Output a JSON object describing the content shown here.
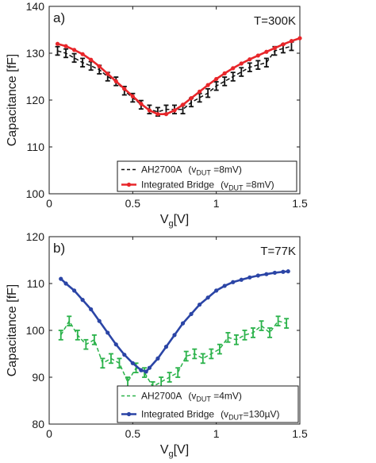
{
  "chart_data": [
    {
      "type": "line",
      "panel_label": "a)",
      "annotation": "T=300K",
      "xlabel_main": "V",
      "xlabel_sub": "g",
      "xlabel_unit": "[V]",
      "ylabel": "Capacitance [fF]",
      "xlim": [
        0,
        1.5
      ],
      "ylim": [
        100,
        140
      ],
      "xticks": [
        0,
        0.5,
        1,
        1.5
      ],
      "xtick_labels": [
        "0",
        "0.5",
        "1",
        "1.5"
      ],
      "yticks": [
        100,
        110,
        120,
        130,
        140
      ],
      "ytick_labels": [
        "100",
        "110",
        "120",
        "130",
        "140"
      ],
      "legend_position": "bottom-right",
      "legend": [
        {
          "main": "AH2700A",
          "pre": "(v",
          "sub": "DUT",
          "post": " =8mV)",
          "color": "#111111",
          "style": "dashed-errorbar"
        },
        {
          "main": "Integrated Bridge",
          "pre": "(v",
          "sub": "DUT",
          "post": " =8mV)",
          "color": "#e8262a",
          "style": "solid-dots"
        }
      ],
      "series": [
        {
          "color": "#111111",
          "style": "dashed-errorbar",
          "error": 0.9,
          "x": [
            0.05,
            0.1,
            0.15,
            0.2,
            0.25,
            0.3,
            0.35,
            0.4,
            0.45,
            0.5,
            0.55,
            0.6,
            0.65,
            0.7,
            0.75,
            0.8,
            0.85,
            0.9,
            0.95,
            1.0,
            1.05,
            1.1,
            1.15,
            1.2,
            1.25,
            1.3,
            1.35,
            1.4,
            1.45
          ],
          "y": [
            130.5,
            130.0,
            129.0,
            128.0,
            127.3,
            126.5,
            125.0,
            124.0,
            122.0,
            120.5,
            119.0,
            118.0,
            117.5,
            118.0,
            118.0,
            118.0,
            119.5,
            120.5,
            121.5,
            123.0,
            124.0,
            125.0,
            126.0,
            127.0,
            127.5,
            128.0,
            130.5,
            131.0,
            131.5
          ]
        },
        {
          "color": "#e8262a",
          "style": "solid-dots",
          "x": [
            0.05,
            0.1,
            0.15,
            0.2,
            0.25,
            0.3,
            0.35,
            0.4,
            0.45,
            0.5,
            0.55,
            0.6,
            0.65,
            0.7,
            0.75,
            0.8,
            0.85,
            0.9,
            0.95,
            1.0,
            1.05,
            1.1,
            1.15,
            1.2,
            1.25,
            1.3,
            1.35,
            1.4,
            1.45,
            1.5
          ],
          "y": [
            132.0,
            131.5,
            130.7,
            129.8,
            128.6,
            127.2,
            125.6,
            124.0,
            122.4,
            120.8,
            119.2,
            117.8,
            117.0,
            117.0,
            117.8,
            119.0,
            120.4,
            121.8,
            123.2,
            124.5,
            125.7,
            126.8,
            127.8,
            128.7,
            129.5,
            130.3,
            131.1,
            131.9,
            132.6,
            133.2
          ]
        }
      ]
    },
    {
      "type": "line",
      "panel_label": "b)",
      "annotation": "T=77K",
      "xlabel_main": "V",
      "xlabel_sub": "g",
      "xlabel_unit": "[V]",
      "ylabel": "Capacitance [fF]",
      "xlim": [
        0,
        1.5
      ],
      "ylim": [
        80,
        120
      ],
      "xticks": [
        0,
        0.5,
        1,
        1.5
      ],
      "xtick_labels": [
        "0",
        "0.5",
        "1",
        "1.5"
      ],
      "yticks": [
        80,
        90,
        100,
        110,
        120
      ],
      "ytick_labels": [
        "80",
        "90",
        "100",
        "110",
        "120"
      ],
      "legend_position": "bottom-right",
      "legend": [
        {
          "main": "AH2700A",
          "pre": "(v",
          "sub": "DUT",
          "post": " =4mV)",
          "color": "#2ab24a",
          "style": "dashed-errorbar"
        },
        {
          "main": "Integrated Bridge",
          "pre": "(v",
          "sub": "DUT",
          "post": "=130µV)",
          "color": "#2b45a6",
          "style": "solid-dots"
        }
      ],
      "series": [
        {
          "color": "#2ab24a",
          "style": "dashed-errorbar",
          "error": 1.0,
          "x": [
            0.07,
            0.12,
            0.17,
            0.22,
            0.27,
            0.32,
            0.37,
            0.42,
            0.47,
            0.52,
            0.57,
            0.62,
            0.67,
            0.72,
            0.77,
            0.82,
            0.87,
            0.92,
            0.97,
            1.02,
            1.07,
            1.12,
            1.17,
            1.22,
            1.27,
            1.32,
            1.37,
            1.42
          ],
          "y": [
            99.0,
            102.0,
            99.0,
            97.0,
            98.0,
            93.0,
            94.0,
            93.0,
            89.0,
            92.0,
            91.0,
            88.0,
            89.0,
            90.0,
            91.0,
            94.5,
            95.0,
            94.0,
            95.0,
            96.0,
            98.5,
            98.0,
            99.0,
            99.5,
            101.0,
            99.5,
            102.0,
            101.5
          ]
        },
        {
          "color": "#2b45a6",
          "style": "solid-dots",
          "x": [
            0.07,
            0.1,
            0.15,
            0.2,
            0.25,
            0.3,
            0.35,
            0.4,
            0.45,
            0.5,
            0.55,
            0.58,
            0.6,
            0.65,
            0.7,
            0.75,
            0.8,
            0.85,
            0.9,
            0.95,
            1.0,
            1.05,
            1.1,
            1.15,
            1.2,
            1.25,
            1.3,
            1.35,
            1.4,
            1.43
          ],
          "y": [
            111.0,
            110.0,
            108.5,
            106.5,
            104.5,
            102.0,
            99.5,
            97.0,
            94.8,
            93.0,
            91.5,
            91.2,
            92.0,
            94.0,
            96.5,
            99.0,
            101.5,
            103.5,
            105.5,
            107.0,
            108.5,
            109.5,
            110.3,
            110.8,
            111.3,
            111.7,
            112.0,
            112.3,
            112.5,
            112.6
          ]
        }
      ]
    }
  ]
}
